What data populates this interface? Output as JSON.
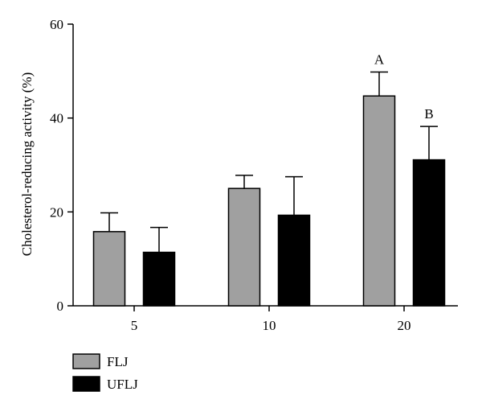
{
  "chart_data": {
    "type": "bar",
    "title": "",
    "xlabel": "",
    "ylabel": "Cholesterol-reducing activity (%)",
    "ylim": [
      0,
      60
    ],
    "yticks": [
      0,
      20,
      40,
      60
    ],
    "categories": [
      "5",
      "10",
      "20"
    ],
    "grid": false,
    "legend_position": "bottom-left",
    "series": [
      {
        "name": "FLJ",
        "color": "#a0a0a0",
        "values": [
          15.8,
          25.0,
          44.7
        ],
        "errors": [
          4.0,
          2.8,
          5.1
        ]
      },
      {
        "name": "UFLJ",
        "color": "#000000",
        "values": [
          11.4,
          19.3,
          31.1
        ],
        "errors": [
          5.3,
          8.2,
          7.1
        ]
      }
    ],
    "annotations": [
      {
        "category": "20",
        "series": "FLJ",
        "text": "A"
      },
      {
        "category": "20",
        "series": "UFLJ",
        "text": "B"
      }
    ]
  }
}
